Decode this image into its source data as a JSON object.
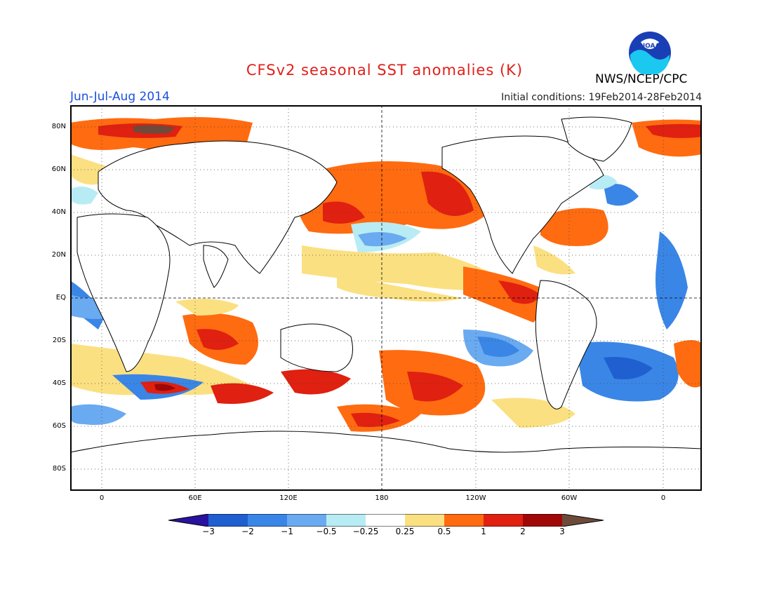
{
  "header": {
    "title": "CFSv2 seasonal SST anomalies (K)",
    "season": "Jun-Jul-Aug 2014",
    "initial_conditions": "Initial conditions: 19Feb2014-28Feb2014",
    "agency": "NWS/NCEP/CPC",
    "logo_text": "NOAA",
    "logo_icon": "noaa-logo-icon"
  },
  "axes": {
    "lat_labels": [
      "80N",
      "60N",
      "40N",
      "20N",
      "EQ",
      "20S",
      "40S",
      "60S",
      "80S"
    ],
    "lon_labels": [
      "0",
      "60E",
      "120E",
      "180",
      "120W",
      "60W",
      "0"
    ]
  },
  "colorbar": {
    "labels": [
      "-3",
      "-2",
      "-1",
      "-0.5",
      "-0.25",
      "0.25",
      "0.5",
      "1",
      "2",
      "3"
    ],
    "colors": [
      "#2a12a0",
      "#1f5fcf",
      "#3a86e6",
      "#6aaaf0",
      "#b8ecf4",
      "#ffffff",
      "#fbe082",
      "#ff6b10",
      "#e02010",
      "#a00808",
      "#6e4a3a"
    ]
  },
  "map": {
    "land_color": "#ffffff",
    "coast_color": "#000000",
    "grid_style": "dotted"
  }
}
